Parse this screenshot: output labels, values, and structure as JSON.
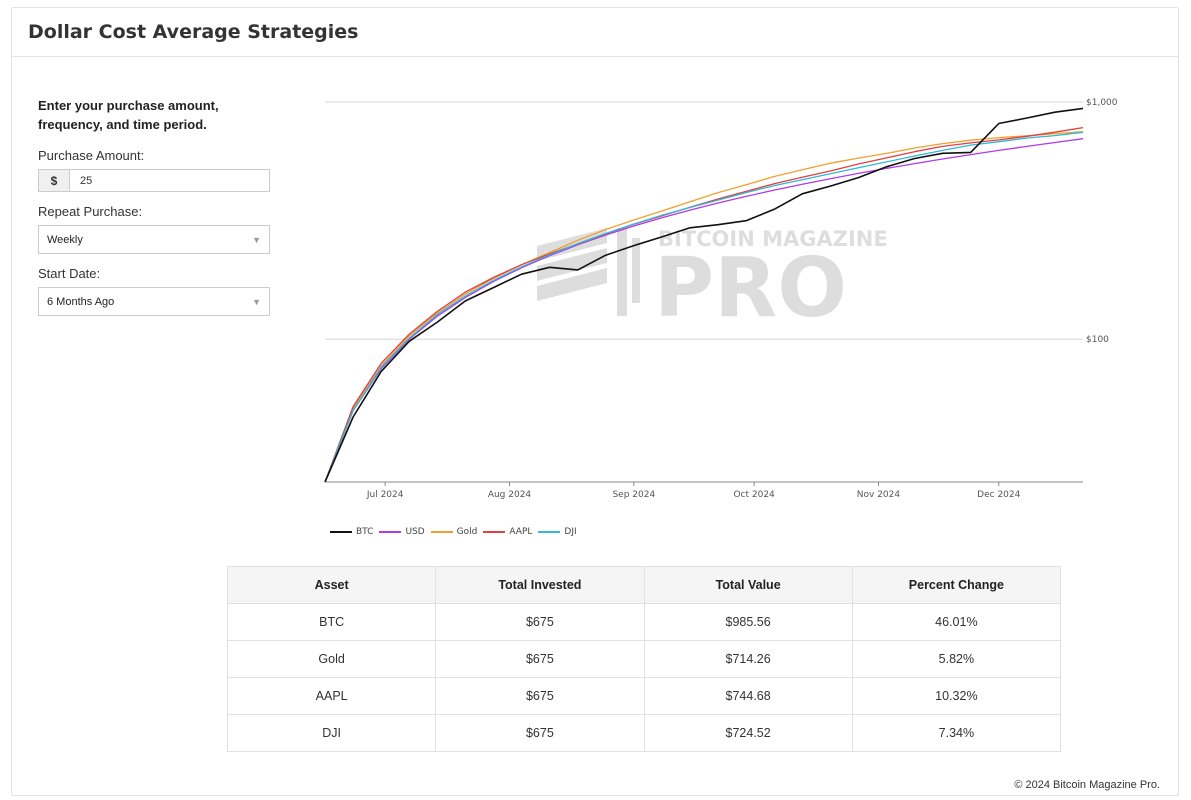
{
  "header": {
    "title": "Dollar Cost Average Strategies"
  },
  "form": {
    "intro": "Enter your purchase amount, frequency, and time period.",
    "amount_label": "Purchase Amount:",
    "currency_symbol": "$",
    "amount_value": "25",
    "repeat_label": "Repeat Purchase:",
    "repeat_value": "Weekly",
    "start_label": "Start Date:",
    "start_value": "6 Months Ago"
  },
  "watermark": {
    "line1": "BITCOIN MAGAZINE",
    "line2": "PRO"
  },
  "chart_data": {
    "type": "line",
    "yscale": "log",
    "ylim": [
      25,
      1000
    ],
    "yticks": [
      {
        "value": 100,
        "label": "$100"
      },
      {
        "value": 1000,
        "label": "$1,000"
      }
    ],
    "x": [
      "2024-06-16",
      "2024-06-23",
      "2024-06-30",
      "2024-07-07",
      "2024-07-14",
      "2024-07-21",
      "2024-07-28",
      "2024-08-04",
      "2024-08-11",
      "2024-08-18",
      "2024-08-25",
      "2024-09-01",
      "2024-09-08",
      "2024-09-15",
      "2024-09-22",
      "2024-09-29",
      "2024-10-06",
      "2024-10-13",
      "2024-10-20",
      "2024-10-27",
      "2024-11-03",
      "2024-11-10",
      "2024-11-17",
      "2024-11-24",
      "2024-12-01",
      "2024-12-08",
      "2024-12-15",
      "2024-12-22"
    ],
    "xlim": [
      "2024-06-16",
      "2024-12-22"
    ],
    "xticks": [
      {
        "date": "2024-07-01",
        "label": "Jul 2024"
      },
      {
        "date": "2024-08-01",
        "label": "Aug 2024"
      },
      {
        "date": "2024-09-01",
        "label": "Sep 2024"
      },
      {
        "date": "2024-10-01",
        "label": "Oct 2024"
      },
      {
        "date": "2024-11-01",
        "label": "Nov 2024"
      },
      {
        "date": "2024-12-01",
        "label": "Dec 2024"
      }
    ],
    "series": [
      {
        "name": "BTC",
        "color": "#111111",
        "values": [
          25,
          47,
          73,
          98,
          118,
          145,
          165,
          188,
          201,
          196,
          226,
          248,
          270,
          295,
          304,
          316,
          353,
          410,
          442,
          480,
          533,
          578,
          608,
          613,
          812,
          856,
          906,
          940
        ]
      },
      {
        "name": "USD",
        "color": "#b03be8",
        "values": [
          25,
          50,
          75,
          100,
          125,
          150,
          175,
          200,
          225,
          250,
          275,
          300,
          325,
          350,
          375,
          400,
          425,
          450,
          475,
          500,
          525,
          550,
          575,
          600,
          625,
          650,
          675,
          700
        ]
      },
      {
        "name": "Gold",
        "color": "#f0a030",
        "values": [
          25,
          51,
          77,
          103,
          129,
          155,
          180,
          206,
          232,
          261,
          290,
          318,
          347,
          380,
          415,
          448,
          485,
          518,
          552,
          580,
          607,
          640,
          668,
          690,
          708,
          720,
          735,
          750
        ]
      },
      {
        "name": "AAPL",
        "color": "#e04040",
        "values": [
          25,
          52,
          79,
          105,
          131,
          158,
          182,
          206,
          229,
          252,
          278,
          305,
          331,
          360,
          390,
          420,
          452,
          482,
          512,
          548,
          581,
          617,
          650,
          672,
          692,
          717,
          746,
          780
        ]
      },
      {
        "name": "DJI",
        "color": "#30b8d8",
        "values": [
          25,
          50,
          76,
          101,
          127,
          152,
          177,
          202,
          227,
          253,
          279,
          306,
          333,
          359,
          386,
          415,
          444,
          470,
          498,
          528,
          559,
          592,
          625,
          658,
          680,
          705,
          722,
          745
        ]
      }
    ]
  },
  "table": {
    "headers": [
      "Asset",
      "Total Invested",
      "Total Value",
      "Percent Change"
    ],
    "rows": [
      [
        "BTC",
        "$675",
        "$985.56",
        "46.01%"
      ],
      [
        "Gold",
        "$675",
        "$714.26",
        "5.82%"
      ],
      [
        "AAPL",
        "$675",
        "$744.68",
        "10.32%"
      ],
      [
        "DJI",
        "$675",
        "$724.52",
        "7.34%"
      ]
    ]
  },
  "footer": {
    "copyright": "© 2024 Bitcoin Magazine Pro."
  }
}
